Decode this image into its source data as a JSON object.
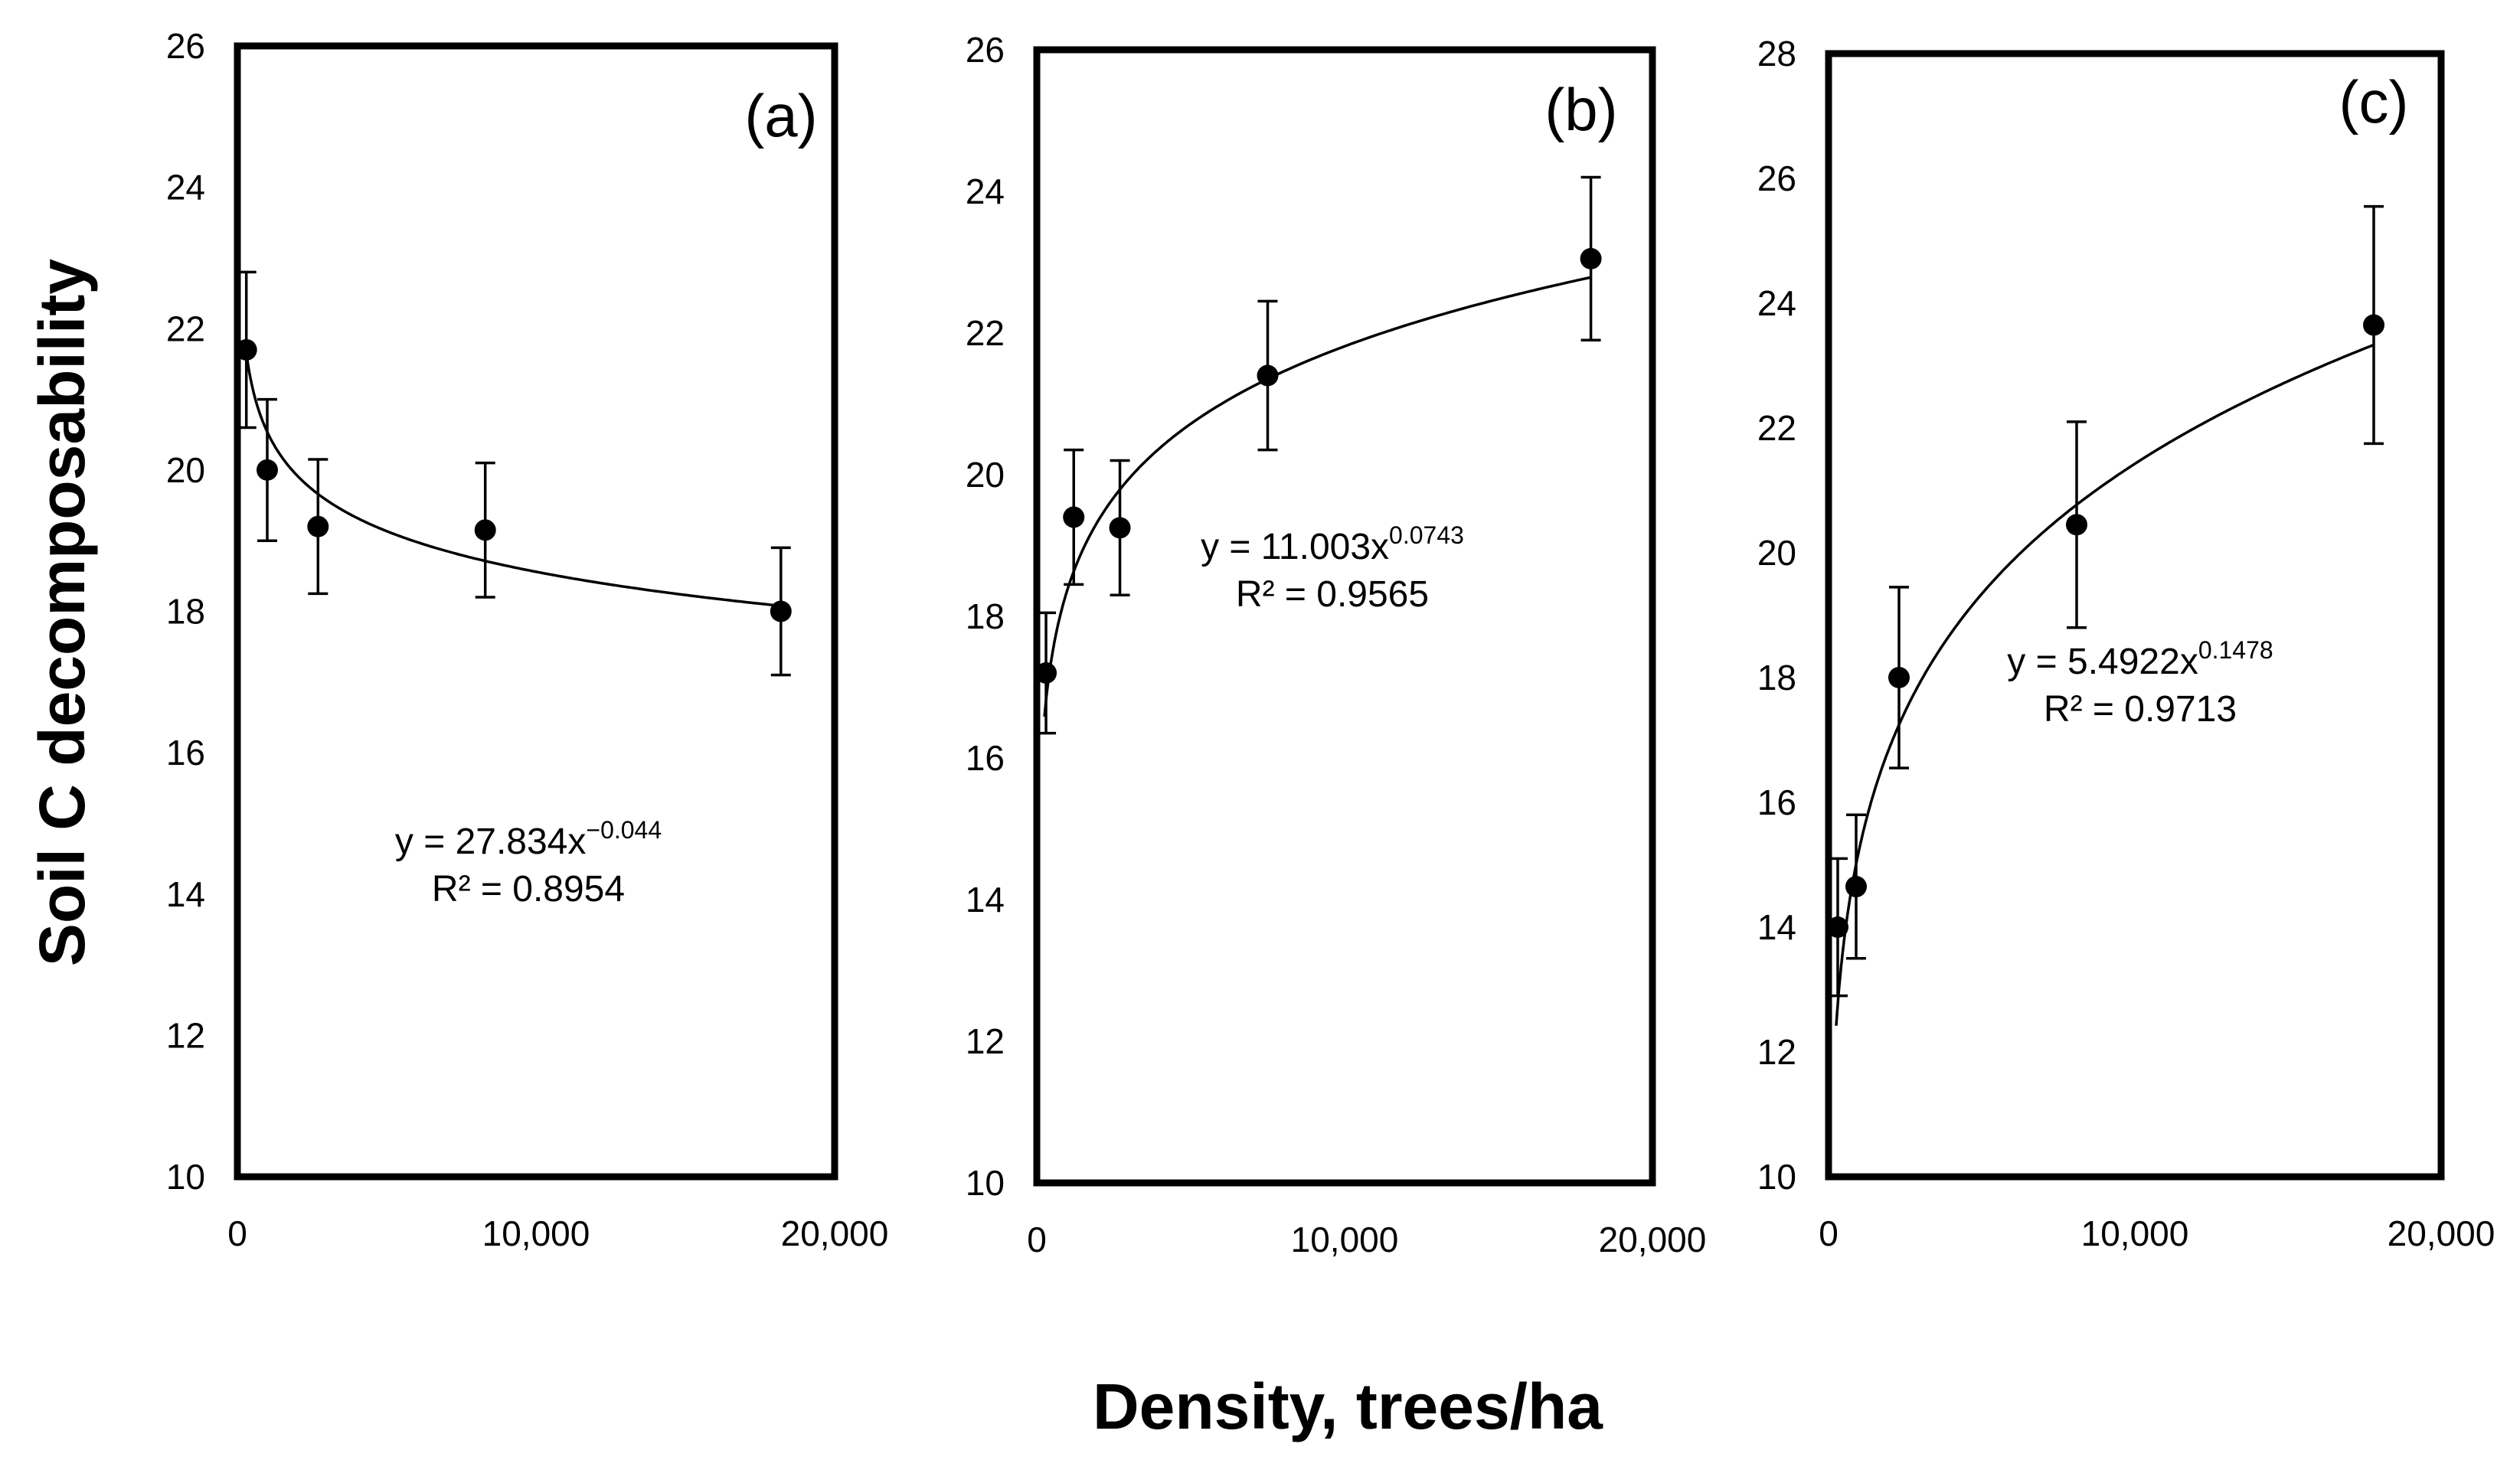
{
  "figure": {
    "ylabel": "Soil C decomposability",
    "xlabel": "Density, trees/ha"
  },
  "chart_data": [
    {
      "type": "scatter",
      "panel_label": "(a)",
      "x": [
        300,
        1000,
        2700,
        8300,
        18200
      ],
      "y": [
        21.7,
        20.0,
        19.2,
        19.15,
        18.0
      ],
      "error": [
        1.1,
        1.0,
        0.95,
        0.95,
        0.9
      ],
      "xlim": [
        0,
        20000
      ],
      "ylim": [
        10,
        26
      ],
      "xticks": [
        0,
        10000,
        20000
      ],
      "yticks": [
        10,
        12,
        14,
        16,
        18,
        20,
        22,
        24,
        26
      ],
      "xtick_labels": [
        "0",
        "10,000",
        "20,000"
      ],
      "ytick_labels": [
        "10",
        "12",
        "14",
        "16",
        "18",
        "20",
        "22",
        "24",
        "26"
      ],
      "fit": {
        "model": "power",
        "a": 27.834,
        "b": -0.044,
        "x_from": 250,
        "x_to": 18200
      },
      "equation_text": "y = 27.834x",
      "equation_exp": "−0.044",
      "r2_text": "R² = 0.8954"
    },
    {
      "type": "scatter",
      "panel_label": "(b)",
      "x": [
        300,
        1200,
        2700,
        7500,
        18000
      ],
      "y": [
        17.2,
        19.4,
        19.25,
        21.4,
        23.05
      ],
      "error": [
        0.85,
        0.95,
        0.95,
        1.05,
        1.15
      ],
      "xlim": [
        0,
        20000
      ],
      "ylim": [
        10,
        26
      ],
      "xticks": [
        0,
        10000,
        20000
      ],
      "yticks": [
        10,
        12,
        14,
        16,
        18,
        20,
        22,
        24,
        26
      ],
      "xtick_labels": [
        "0",
        "10,000",
        "20,000"
      ],
      "ytick_labels": [
        "10",
        "12",
        "14",
        "16",
        "18",
        "20",
        "22",
        "24",
        "26"
      ],
      "fit": {
        "model": "power",
        "a": 11.003,
        "b": 0.0743,
        "x_from": 250,
        "x_to": 18000
      },
      "equation_text": "y = 11.003x",
      "equation_exp": "0.0743",
      "r2_text": "R² = 0.9565"
    },
    {
      "type": "scatter",
      "panel_label": "(c)",
      "x": [
        300,
        900,
        2300,
        8100,
        17800
      ],
      "y": [
        14.0,
        14.65,
        18.0,
        20.45,
        23.65
      ],
      "error": [
        1.1,
        1.15,
        1.45,
        1.65,
        1.9
      ],
      "xlim": [
        0,
        20000
      ],
      "ylim": [
        10,
        28
      ],
      "xticks": [
        0,
        10000,
        20000
      ],
      "yticks": [
        10,
        12,
        14,
        16,
        18,
        20,
        22,
        24,
        26,
        28
      ],
      "xtick_labels": [
        "0",
        "10,000",
        "20,000"
      ],
      "ytick_labels": [
        "10",
        "12",
        "14",
        "16",
        "18",
        "20",
        "22",
        "24",
        "26",
        "28"
      ],
      "fit": {
        "model": "power",
        "a": 5.4922,
        "b": 0.1478,
        "x_from": 250,
        "x_to": 17800
      },
      "equation_text": "y = 5.4922x",
      "equation_exp": "0.1478",
      "r2_text": "R² = 0.9713"
    }
  ]
}
